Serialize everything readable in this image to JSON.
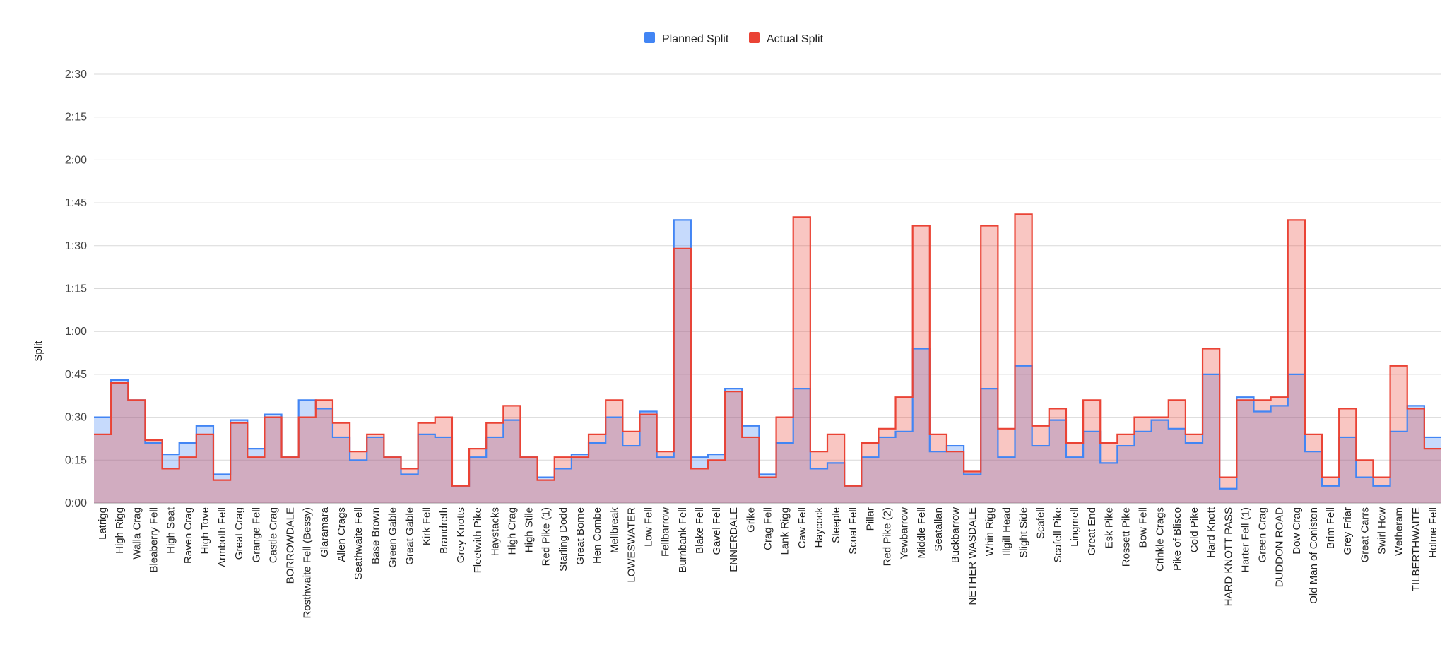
{
  "chart_data": {
    "type": "area",
    "step": true,
    "xlabel": "",
    "ylabel": "Split",
    "ylim": [
      0,
      150
    ],
    "yticks": [
      "0:00",
      "0:15",
      "0:30",
      "0:45",
      "1:00",
      "1:15",
      "1:30",
      "1:45",
      "2:00",
      "2:15",
      "2:30"
    ],
    "grid": true,
    "legend": "top",
    "categories": [
      "Latrigg",
      "High Rigg",
      "Walla Crag",
      "Bleaberry Fell",
      "High Seat",
      "Raven Crag",
      "High Tove",
      "Armboth Fell",
      "Great Crag",
      "Grange Fell",
      "Castle Crag",
      "BORROWDALE",
      "Rosthwaite Fell (Bessy)",
      "Glaramara",
      "Allen Crags",
      "Seathwaite Fell",
      "Base Brown",
      "Green Gable",
      "Great Gable",
      "Kirk Fell",
      "Brandreth",
      "Grey Knotts",
      "Fleetwith Pike",
      "Haystacks",
      "High Crag",
      "High Stile",
      "Red Pike (1)",
      "Starling Dodd",
      "Great Borne",
      "Hen Combe",
      "Mellbreak",
      "LOWESWATER",
      "Low Fell",
      "Fellbarrow",
      "Burnbank Fell",
      "Blake Fell",
      "Gavel Fell",
      "ENNERDALE",
      "Grike",
      "Crag Fell",
      "Lank Rigg",
      "Caw Fell",
      "Haycock",
      "Steeple",
      "Scoat Fell",
      "Pillar",
      "Red Pike (2)",
      "Yewbarrow",
      "Middle Fell",
      "Seatallan",
      "Buckbarrow",
      "NETHER WASDALE",
      "Whin Rigg",
      "Illgill Head",
      "Slight Side",
      "Scafell",
      "Scafell Pike",
      "Lingmell",
      "Great End",
      "Esk Pike",
      "Rossett Pike",
      "Bow Fell",
      "Crinkle Crags",
      "Pike of Blisco",
      "Cold Pike",
      "Hard Knott",
      "HARD KNOTT PASS",
      "Harter Fell (1)",
      "Green Crag",
      "DUDDON ROAD",
      "Dow Crag",
      "Old Man of Coniston",
      "Brim Fell",
      "Grey Friar",
      "Great Carrs",
      "Swirl How",
      "Wetheram",
      "TILBERTHWAITE",
      "Holme Fell"
    ],
    "series": [
      {
        "name": "Planned Split",
        "color": "#4285f4",
        "fill": "#c6d7f5",
        "values": [
          30,
          43,
          36,
          21,
          17,
          21,
          27,
          10,
          29,
          19,
          31,
          16,
          36,
          33,
          23,
          15,
          23,
          16,
          10,
          24,
          23,
          6,
          16,
          23,
          29,
          16,
          9,
          12,
          17,
          21,
          30,
          20,
          32,
          16,
          99,
          16,
          17,
          40,
          27,
          10,
          21,
          40,
          12,
          14,
          6,
          16,
          23,
          25,
          54,
          18,
          20,
          10,
          40,
          16,
          48,
          20,
          29,
          16,
          25,
          14,
          20,
          25,
          29,
          26,
          21,
          45,
          5,
          37,
          32,
          34,
          45,
          18,
          6,
          23,
          9,
          6,
          25,
          34,
          23
        ]
      },
      {
        "name": "Actual Split",
        "color": "#ea4335",
        "fill": "#f6c4c0",
        "values": [
          24,
          42,
          36,
          22,
          12,
          16,
          24,
          8,
          28,
          16,
          30,
          16,
          30,
          36,
          28,
          18,
          24,
          16,
          12,
          28,
          30,
          6,
          19,
          28,
          34,
          16,
          8,
          16,
          16,
          24,
          36,
          25,
          31,
          18,
          89,
          12,
          15,
          39,
          23,
          9,
          30,
          100,
          18,
          24,
          6,
          21,
          26,
          37,
          97,
          24,
          18,
          11,
          97,
          26,
          101,
          27,
          33,
          21,
          36,
          21,
          24,
          30,
          30,
          36,
          24,
          54,
          9,
          36,
          36,
          37,
          99,
          24,
          9,
          33,
          15,
          9,
          48,
          33,
          19
        ]
      }
    ]
  }
}
